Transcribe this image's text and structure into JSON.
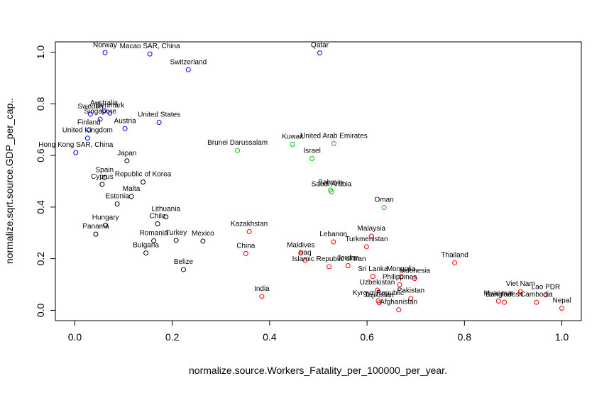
{
  "chart_data": {
    "type": "scatter",
    "title": "",
    "xlabel": "normalize.source.Workers_Fatality_per_100000_per_year.",
    "ylabel": "normalize.sqrt.source.GDP_per_cap..",
    "xlim": [
      -0.04,
      1.04
    ],
    "ylim": [
      -0.04,
      1.04
    ],
    "xticks": [
      "0.0",
      "0.2",
      "0.4",
      "0.6",
      "0.8",
      "1.0"
    ],
    "yticks": [
      "0.0",
      "0.2",
      "0.4",
      "0.6",
      "0.8",
      "1.0"
    ],
    "grid": false,
    "legend": null,
    "colors": {
      "blue": "#0000ff",
      "black": "#000000",
      "green": "#00cd00",
      "red": "#ff0000"
    },
    "points": [
      {
        "label": "Norway",
        "x": 0.062,
        "y": 0.998,
        "color": "blue"
      },
      {
        "label": "Macao SAR, China",
        "x": 0.154,
        "y": 0.993,
        "color": "blue"
      },
      {
        "label": "Switzerland",
        "x": 0.233,
        "y": 0.932,
        "color": "blue"
      },
      {
        "label": "Qatar",
        "x": 0.503,
        "y": 0.997,
        "color": "blue"
      },
      {
        "label": "Australia",
        "x": 0.06,
        "y": 0.774,
        "color": "blue"
      },
      {
        "label": "Denmark",
        "x": 0.072,
        "y": 0.764,
        "color": "blue"
      },
      {
        "label": "Sweden",
        "x": 0.032,
        "y": 0.76,
        "color": "blue"
      },
      {
        "label": "Singapore",
        "x": 0.052,
        "y": 0.74,
        "color": "blue"
      },
      {
        "label": "United States",
        "x": 0.173,
        "y": 0.728,
        "color": "blue"
      },
      {
        "label": "Finland",
        "x": 0.029,
        "y": 0.698,
        "color": "blue"
      },
      {
        "label": "Austria",
        "x": 0.103,
        "y": 0.704,
        "color": "blue"
      },
      {
        "label": "United Kingdom",
        "x": 0.026,
        "y": 0.667,
        "color": "blue"
      },
      {
        "label": "Hong Kong SAR, China",
        "x": 0.002,
        "y": 0.611,
        "color": "blue"
      },
      {
        "label": "Japan",
        "x": 0.107,
        "y": 0.579,
        "color": "black"
      },
      {
        "label": "Spain",
        "x": 0.061,
        "y": 0.514,
        "color": "black"
      },
      {
        "label": "Cyprus",
        "x": 0.056,
        "y": 0.488,
        "color": "black"
      },
      {
        "label": "Republic of Korea",
        "x": 0.14,
        "y": 0.497,
        "color": "black"
      },
      {
        "label": "Malta",
        "x": 0.116,
        "y": 0.441,
        "color": "black"
      },
      {
        "label": "Estonia",
        "x": 0.087,
        "y": 0.412,
        "color": "black"
      },
      {
        "label": "Lithuania",
        "x": 0.187,
        "y": 0.362,
        "color": "black"
      },
      {
        "label": "Chile",
        "x": 0.17,
        "y": 0.335,
        "color": "black"
      },
      {
        "label": "Hungary",
        "x": 0.063,
        "y": 0.33,
        "color": "black"
      },
      {
        "label": "Panama",
        "x": 0.043,
        "y": 0.295,
        "color": "black"
      },
      {
        "label": "Romania",
        "x": 0.162,
        "y": 0.269,
        "color": "black"
      },
      {
        "label": "Turkey",
        "x": 0.208,
        "y": 0.271,
        "color": "black"
      },
      {
        "label": "Mexico",
        "x": 0.263,
        "y": 0.268,
        "color": "black"
      },
      {
        "label": "Bulgaria",
        "x": 0.146,
        "y": 0.222,
        "color": "black"
      },
      {
        "label": "Belize",
        "x": 0.223,
        "y": 0.158,
        "color": "black"
      },
      {
        "label": "Brunei Darussalam",
        "x": 0.334,
        "y": 0.619,
        "color": "green"
      },
      {
        "label": "Kuwait",
        "x": 0.447,
        "y": 0.643,
        "color": "green"
      },
      {
        "label": "United Arab Emirates",
        "x": 0.532,
        "y": 0.646,
        "color": "green"
      },
      {
        "label": "Israel",
        "x": 0.487,
        "y": 0.588,
        "color": "green"
      },
      {
        "label": "Bahrain",
        "x": 0.525,
        "y": 0.466,
        "color": "green"
      },
      {
        "label": "Saudi Arabia",
        "x": 0.527,
        "y": 0.459,
        "color": "green"
      },
      {
        "label": "Oman",
        "x": 0.635,
        "y": 0.398,
        "color": "green"
      },
      {
        "label": "Kazakhstan",
        "x": 0.358,
        "y": 0.305,
        "color": "red"
      },
      {
        "label": "China",
        "x": 0.351,
        "y": 0.22,
        "color": "red"
      },
      {
        "label": "Maldives",
        "x": 0.464,
        "y": 0.222,
        "color": "red"
      },
      {
        "label": "Iraq",
        "x": 0.473,
        "y": 0.193,
        "color": "red"
      },
      {
        "label": "Islamic Republic of Iran",
        "x": 0.522,
        "y": 0.169,
        "color": "red"
      },
      {
        "label": "Jordan",
        "x": 0.561,
        "y": 0.173,
        "color": "red"
      },
      {
        "label": "Lebanon",
        "x": 0.531,
        "y": 0.265,
        "color": "red"
      },
      {
        "label": "Malaysia",
        "x": 0.609,
        "y": 0.287,
        "color": "red"
      },
      {
        "label": "Turkmenistan",
        "x": 0.599,
        "y": 0.246,
        "color": "red"
      },
      {
        "label": "Sri Lanka",
        "x": 0.612,
        "y": 0.131,
        "color": "red"
      },
      {
        "label": "Mongolia",
        "x": 0.67,
        "y": 0.131,
        "color": "red"
      },
      {
        "label": "Indonesia",
        "x": 0.698,
        "y": 0.123,
        "color": "red"
      },
      {
        "label": "Philippines",
        "x": 0.667,
        "y": 0.099,
        "color": "red"
      },
      {
        "label": "Uzbekistan",
        "x": 0.621,
        "y": 0.078,
        "color": "red"
      },
      {
        "label": "Kyrgyz Republic",
        "x": 0.623,
        "y": 0.037,
        "color": "red"
      },
      {
        "label": "Tajikistan",
        "x": 0.625,
        "y": 0.029,
        "color": "red"
      },
      {
        "label": "Pakistan",
        "x": 0.69,
        "y": 0.046,
        "color": "red"
      },
      {
        "label": "Afghanistan",
        "x": 0.665,
        "y": 0.002,
        "color": "red"
      },
      {
        "label": "India",
        "x": 0.384,
        "y": 0.054,
        "color": "red"
      },
      {
        "label": "Thailand",
        "x": 0.78,
        "y": 0.184,
        "color": "red"
      },
      {
        "label": "Viet Nam",
        "x": 0.915,
        "y": 0.072,
        "color": "red"
      },
      {
        "label": "Myanmar",
        "x": 0.87,
        "y": 0.036,
        "color": "red"
      },
      {
        "label": "Bangladesh",
        "x": 0.882,
        "y": 0.031,
        "color": "red"
      },
      {
        "label": "Cambodia",
        "x": 0.948,
        "y": 0.031,
        "color": "red"
      },
      {
        "label": "Lao PDR",
        "x": 0.967,
        "y": 0.06,
        "color": "red"
      },
      {
        "label": "Nepal",
        "x": 1.0,
        "y": 0.008,
        "color": "red"
      }
    ]
  }
}
